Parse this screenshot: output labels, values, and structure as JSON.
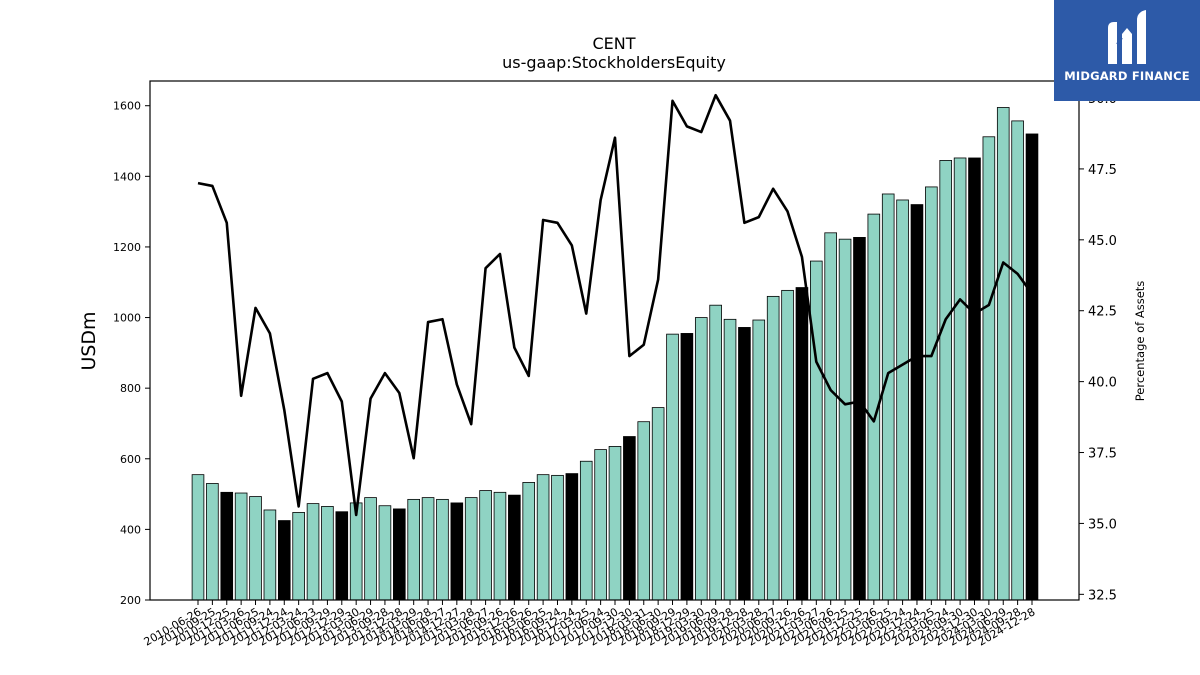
{
  "logo": {
    "text": "MIDGARD FINANCE",
    "icon": "midgard-m-icon",
    "background": "#2d5aa8"
  },
  "chart_data": {
    "type": "bar",
    "title": "CENT",
    "subtitle": "us-gaap:StockholdersEquity",
    "ylabel": "USDm",
    "y2label": "Percentage of Assets",
    "ylim": [
      200,
      1670
    ],
    "y2lim": [
      32.3,
      50.6
    ],
    "yticks": [
      200,
      400,
      600,
      800,
      1000,
      1200,
      1400,
      1600
    ],
    "y2ticks": [
      "32.5",
      "35.0",
      "37.5",
      "40.0",
      "42.5",
      "45.0",
      "47.5",
      "50.0"
    ],
    "colors": {
      "bar": "#8fd3c3",
      "bar_fiscal_year_end": "#000000",
      "bar_edge": "#000000",
      "line": "#000000"
    },
    "x": [
      "2010-06-26",
      "2010-09-25",
      "2010-12-25",
      "2011-03-26",
      "2011-06-25",
      "2011-09-24",
      "2011-12-24",
      "2012-03-24",
      "2012-06-23",
      "2012-09-29",
      "2012-12-29",
      "2013-03-30",
      "2013-06-29",
      "2013-09-28",
      "2013-12-28",
      "2014-03-29",
      "2014-06-28",
      "2014-09-27",
      "2014-12-27",
      "2015-03-28",
      "2015-06-27",
      "2015-09-26",
      "2015-12-26",
      "2016-03-26",
      "2016-06-25",
      "2016-09-24",
      "2016-12-24",
      "2017-03-25",
      "2017-06-24",
      "2017-09-30",
      "2017-12-30",
      "2018-03-31",
      "2018-06-30",
      "2018-09-29",
      "2018-12-29",
      "2019-03-30",
      "2019-06-29",
      "2019-09-28",
      "2019-12-28",
      "2020-03-28",
      "2020-06-27",
      "2020-09-26",
      "2020-12-26",
      "2021-03-27",
      "2021-06-26",
      "2021-09-25",
      "2021-12-25",
      "2022-03-26",
      "2022-06-25",
      "2022-09-24",
      "2022-12-24",
      "2023-03-25",
      "2023-06-24",
      "2023-09-30",
      "2023-12-30",
      "2024-03-30",
      "2024-06-29",
      "2024-09-28",
      "2024-12-28"
    ],
    "series": [
      {
        "type": "bar",
        "axis": "left",
        "values": [
          555,
          530,
          505,
          503,
          493,
          455,
          425,
          448,
          473,
          465,
          450,
          475,
          490,
          467,
          458,
          485,
          490,
          485,
          475,
          490,
          510,
          505,
          497,
          533,
          555,
          553,
          558,
          593,
          626,
          635,
          663,
          705,
          745,
          953,
          955,
          1000,
          1035,
          995,
          972,
          993,
          1060,
          1077,
          1085,
          1160,
          1240,
          1222,
          1227,
          1293,
          1350,
          1333,
          1320,
          1370,
          1445,
          1452,
          1452,
          1512,
          1595,
          1557,
          1520
        ]
      },
      {
        "type": "line",
        "axis": "right",
        "values": [
          47.0,
          46.9,
          45.6,
          39.5,
          42.6,
          41.7,
          39.0,
          35.6,
          40.1,
          40.3,
          39.3,
          35.3,
          39.4,
          40.3,
          39.6,
          37.3,
          42.1,
          42.2,
          39.9,
          38.5,
          44.0,
          44.5,
          41.2,
          40.2,
          45.7,
          45.6,
          44.8,
          42.4,
          46.4,
          48.6,
          40.9,
          41.3,
          43.6,
          49.9,
          49.0,
          48.8,
          50.1,
          49.2,
          45.6,
          45.8,
          46.8,
          46.0,
          44.4,
          40.7,
          39.7,
          39.2,
          39.3,
          38.6,
          40.3,
          40.6,
          40.9,
          40.9,
          42.2,
          42.9,
          42.4,
          42.7,
          44.2,
          43.8,
          43.1
        ]
      }
    ],
    "fiscal_year_end_bars": [
      2,
      6,
      10,
      14,
      18,
      22,
      26,
      30,
      34,
      38,
      42,
      46,
      50,
      54,
      58
    ]
  }
}
